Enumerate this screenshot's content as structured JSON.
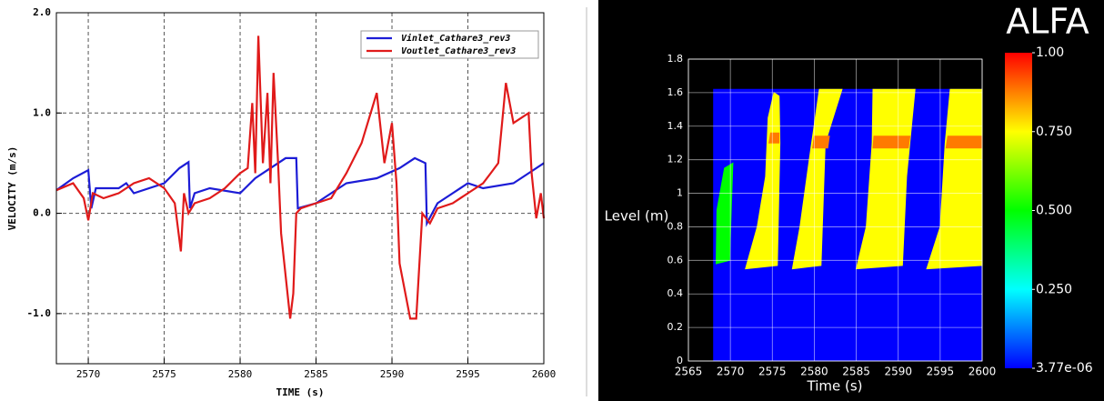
{
  "chart_data": [
    {
      "type": "line",
      "x_label": "TIME (s)",
      "y_label": "VELOCITY (m/s)",
      "xlim": [
        2567.9,
        2600
      ],
      "ylim": [
        -1.5,
        2.0
      ],
      "xticks": [
        2570,
        2575,
        2580,
        2585,
        2590,
        2595,
        2600
      ],
      "yticks": [
        {
          "value": -1,
          "label": "-1.0"
        },
        {
          "value": 0,
          "label": "0.0"
        },
        {
          "value": 1,
          "label": "1.0"
        },
        {
          "value": 2,
          "label": "2.0"
        }
      ],
      "grid": true,
      "legend": "upper right",
      "series": [
        {
          "name": "Vinlet_Cathare3_rev3",
          "color": "#1c1cd6",
          "x": [
            2567.9,
            2569,
            2570,
            2570.2,
            2570.5,
            2572,
            2572.5,
            2573,
            2575,
            2576,
            2576.6,
            2576.7,
            2577,
            2578,
            2580,
            2581,
            2582,
            2583,
            2583.7,
            2583.8,
            2585,
            2586,
            2587,
            2589,
            2590.5,
            2591.5,
            2592.2,
            2592.3,
            2593,
            2594,
            2595,
            2596,
            2598,
            2599,
            2600
          ],
          "values": [
            0.23,
            0.35,
            0.43,
            0.05,
            0.25,
            0.25,
            0.3,
            0.2,
            0.3,
            0.45,
            0.51,
            0.05,
            0.2,
            0.25,
            0.2,
            0.35,
            0.45,
            0.55,
            0.55,
            0.05,
            0.1,
            0.2,
            0.3,
            0.35,
            0.45,
            0.55,
            0.5,
            -0.1,
            0.1,
            0.2,
            0.3,
            0.25,
            0.3,
            0.4,
            0.5
          ]
        },
        {
          "name": "Voutlet_Cathare3_rev3",
          "color": "#e01a1a",
          "x": [
            2567.9,
            2569,
            2569.7,
            2570,
            2570.3,
            2571,
            2572,
            2573,
            2574,
            2575,
            2575.7,
            2576.1,
            2576.3,
            2576.6,
            2577,
            2578,
            2579,
            2580,
            2580.5,
            2580.8,
            2581,
            2581.2,
            2581.5,
            2581.8,
            2582,
            2582.2,
            2582.5,
            2582.7,
            2583.3,
            2583.5,
            2583.7,
            2584,
            2585,
            2586,
            2587,
            2588,
            2589,
            2589.5,
            2590,
            2590.3,
            2590.5,
            2591.2,
            2591.6,
            2592,
            2592.5,
            2593,
            2594,
            2595,
            2596,
            2596.5,
            2597,
            2597.5,
            2598,
            2599,
            2599.2,
            2599.5,
            2599.8,
            2600
          ],
          "values": [
            0.23,
            0.3,
            0.15,
            -0.07,
            0.2,
            0.15,
            0.2,
            0.3,
            0.35,
            0.25,
            0.1,
            -0.38,
            0.2,
            0.0,
            0.1,
            0.15,
            0.25,
            0.4,
            0.45,
            1.1,
            0.4,
            1.77,
            0.5,
            1.2,
            0.3,
            1.4,
            0.5,
            -0.2,
            -1.05,
            -0.8,
            0.0,
            0.05,
            0.1,
            0.15,
            0.4,
            0.7,
            1.2,
            0.5,
            0.9,
            0.3,
            -0.5,
            -1.05,
            -1.05,
            0.0,
            -0.1,
            0.05,
            0.1,
            0.2,
            0.3,
            0.4,
            0.5,
            1.3,
            0.9,
            1.0,
            0.4,
            -0.05,
            0.2,
            -0.05
          ]
        }
      ]
    },
    {
      "type": "contour",
      "x_label": "Time (s)",
      "y_label": "Level (m)",
      "colorbar_title": "ALFA",
      "xlim": [
        2565,
        2600
      ],
      "ylim": [
        0,
        1.8
      ],
      "xticks": [
        2565,
        2570,
        2575,
        2580,
        2585,
        2590,
        2595,
        2600
      ],
      "yticks": [
        0,
        0.2,
        0.4,
        0.6,
        0.8,
        1,
        1.2,
        1.4,
        1.6,
        1.8
      ],
      "grid": true,
      "colormap": [
        "#0000ff",
        "#00ffff",
        "#00ff00",
        "#ffff00",
        "#ff0000"
      ],
      "clim": [
        3.77e-06,
        1.0
      ],
      "cticks": [
        {
          "value": 3.77e-06,
          "label": "3.77e-06"
        },
        {
          "value": 0.25,
          "label": "0.250"
        },
        {
          "value": 0.5,
          "label": "0.500"
        },
        {
          "value": 0.75,
          "label": "0.750"
        },
        {
          "value": 1.0,
          "label": "1.00"
        }
      ],
      "regions": [
        {
          "alfa": 3.77e-06,
          "x": [
            2568,
            2600,
            2600,
            2568
          ],
          "y": [
            0,
            0,
            1.62,
            1.62
          ]
        },
        {
          "alfa": 0.5,
          "x": [
            2568.3,
            2569.9,
            2570.3,
            2569.3,
            2568.4
          ],
          "y": [
            0.58,
            0.6,
            1.18,
            1.15,
            0.9
          ]
        },
        {
          "alfa": 0.75,
          "x": [
            2571.8,
            2575.6,
            2575.9,
            2575.8,
            2575.2,
            2574.5,
            2574.2,
            2573.2
          ],
          "y": [
            0.55,
            0.57,
            1.3,
            1.58,
            1.6,
            1.45,
            1.1,
            0.8
          ]
        },
        {
          "alfa": 0.75,
          "x": [
            2577.4,
            2580.8,
            2581.3,
            2583.3,
            2580.6,
            2579.4,
            2578.3
          ],
          "y": [
            0.55,
            0.57,
            1.3,
            1.62,
            1.62,
            1.2,
            0.8
          ]
        },
        {
          "alfa": 0.75,
          "x": [
            2585,
            2590.5,
            2591,
            2592,
            2587,
            2586.9,
            2586.2
          ],
          "y": [
            0.55,
            0.57,
            1.1,
            1.62,
            1.62,
            1.3,
            0.8
          ]
        },
        {
          "alfa": 0.75,
          "x": [
            2593.4,
            2600,
            2600,
            2596.2,
            2595.6,
            2595
          ],
          "y": [
            0.55,
            0.57,
            1.62,
            1.62,
            1.3,
            0.8
          ]
        },
        {
          "alfa": 0.88,
          "x": [
            2574.6,
            2575.8,
            2575.8,
            2574.8
          ],
          "y": [
            1.3,
            1.3,
            1.36,
            1.36
          ]
        },
        {
          "alfa": 0.88,
          "x": [
            2579.8,
            2581.6,
            2581.8,
            2580.0
          ],
          "y": [
            1.27,
            1.27,
            1.34,
            1.34
          ]
        },
        {
          "alfa": 0.88,
          "x": [
            2587.0,
            2591.2,
            2591.4,
            2587.1
          ],
          "y": [
            1.27,
            1.27,
            1.34,
            1.34
          ]
        },
        {
          "alfa": 0.88,
          "x": [
            2595.7,
            2600,
            2600,
            2595.9
          ],
          "y": [
            1.27,
            1.27,
            1.34,
            1.34
          ]
        }
      ]
    }
  ]
}
